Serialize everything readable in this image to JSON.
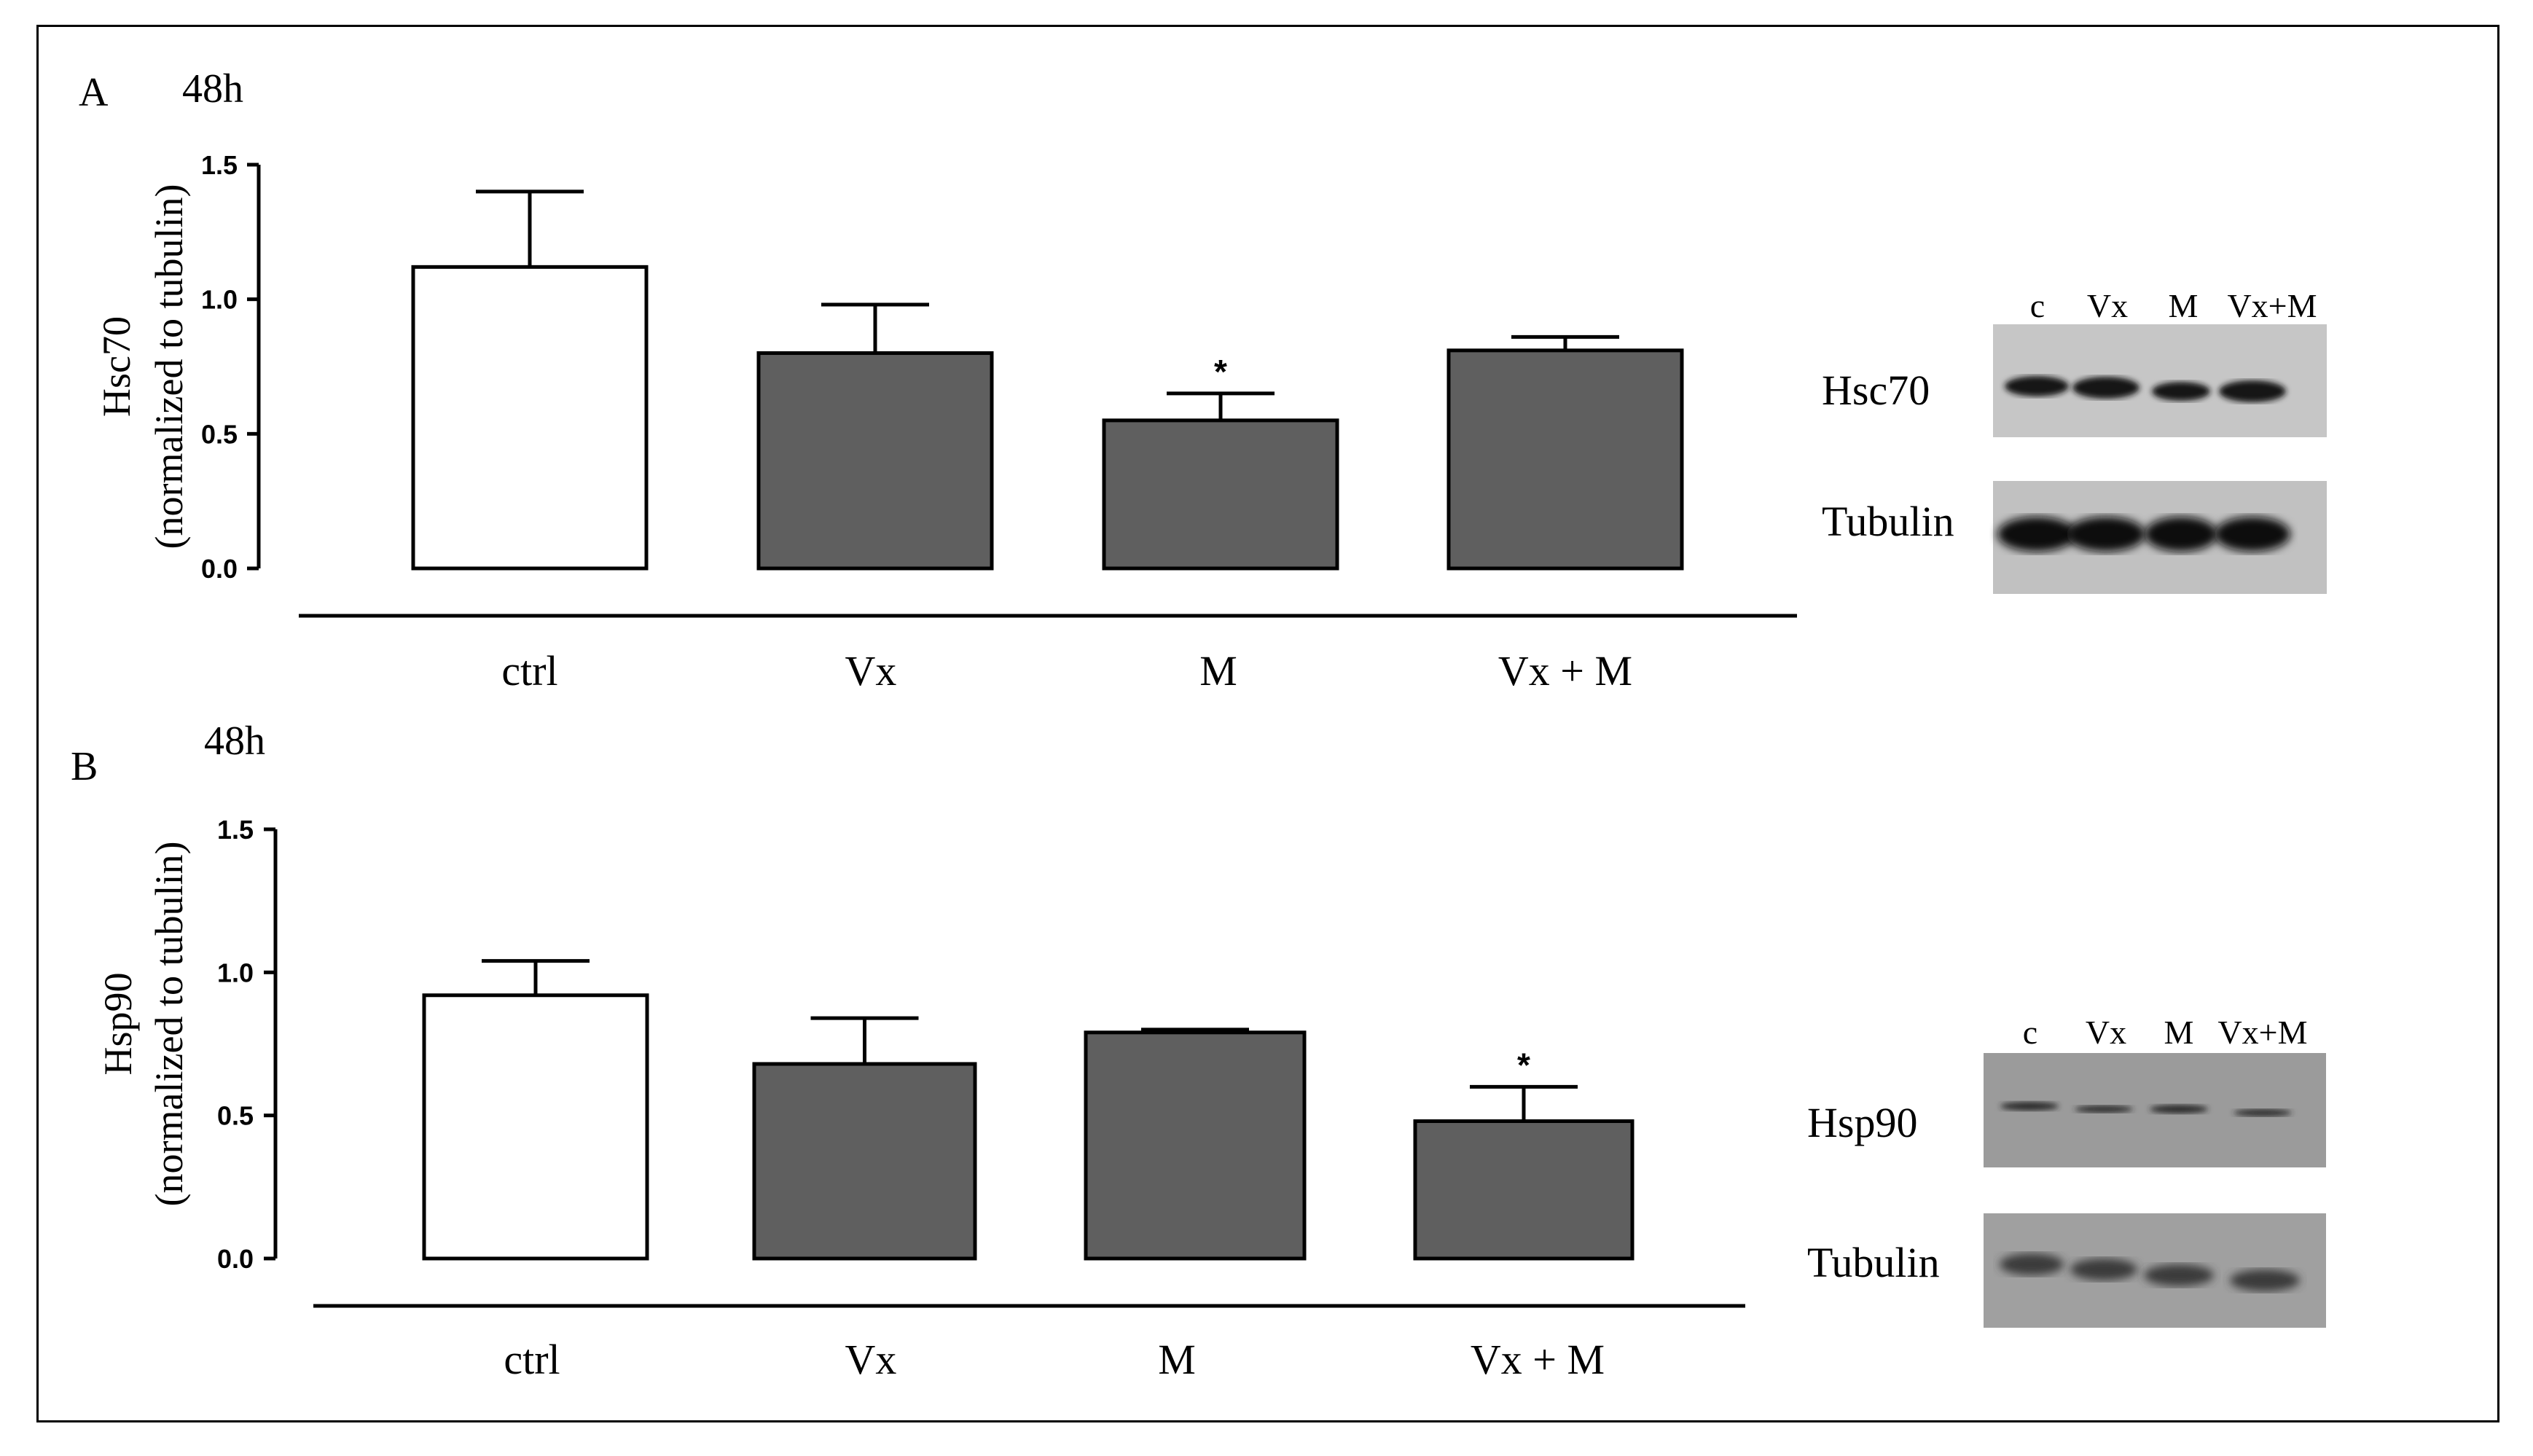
{
  "chart_data": [
    {
      "panel": "A",
      "timepoint": "48h",
      "type": "bar",
      "ylabel_line1": "Hsc70",
      "ylabel_line2": "(normalized to tubulin)",
      "categories": [
        "ctrl",
        "Vx",
        "M",
        "Vx + M"
      ],
      "values": [
        1.12,
        0.8,
        0.55,
        0.81
      ],
      "errors": [
        0.28,
        0.18,
        0.1,
        0.05
      ],
      "significance": [
        "",
        "",
        "*",
        ""
      ],
      "ylim": [
        0,
        1.5
      ],
      "yticks": [
        "0.0",
        "0.5",
        "1.0",
        "1.5"
      ],
      "bar_colors": [
        "#ffffff",
        "#5f5f5f",
        "#5f5f5f",
        "#5f5f5f"
      ],
      "blot": {
        "lanes": [
          "c",
          "Vx",
          "M",
          "Vx+M"
        ],
        "rows": [
          "Hsc70",
          "Tubulin"
        ]
      }
    },
    {
      "panel": "B",
      "timepoint": "48h",
      "type": "bar",
      "ylabel_line1": "Hsp90",
      "ylabel_line2": "(normalized to tubulin)",
      "categories": [
        "ctrl",
        "Vx",
        "M",
        "Vx + M"
      ],
      "values": [
        0.92,
        0.68,
        0.79,
        0.48
      ],
      "errors": [
        0.12,
        0.16,
        0.01,
        0.12
      ],
      "significance": [
        "",
        "",
        "",
        "*"
      ],
      "ylim": [
        0,
        1.5
      ],
      "yticks": [
        "0.0",
        "0.5",
        "1.0",
        "1.5"
      ],
      "bar_colors": [
        "#ffffff",
        "#5f5f5f",
        "#5f5f5f",
        "#5f5f5f"
      ],
      "blot": {
        "lanes": [
          "c",
          "Vx",
          "M",
          "Vx+M"
        ],
        "rows": [
          "Hsp90",
          "Tubulin"
        ]
      }
    }
  ]
}
